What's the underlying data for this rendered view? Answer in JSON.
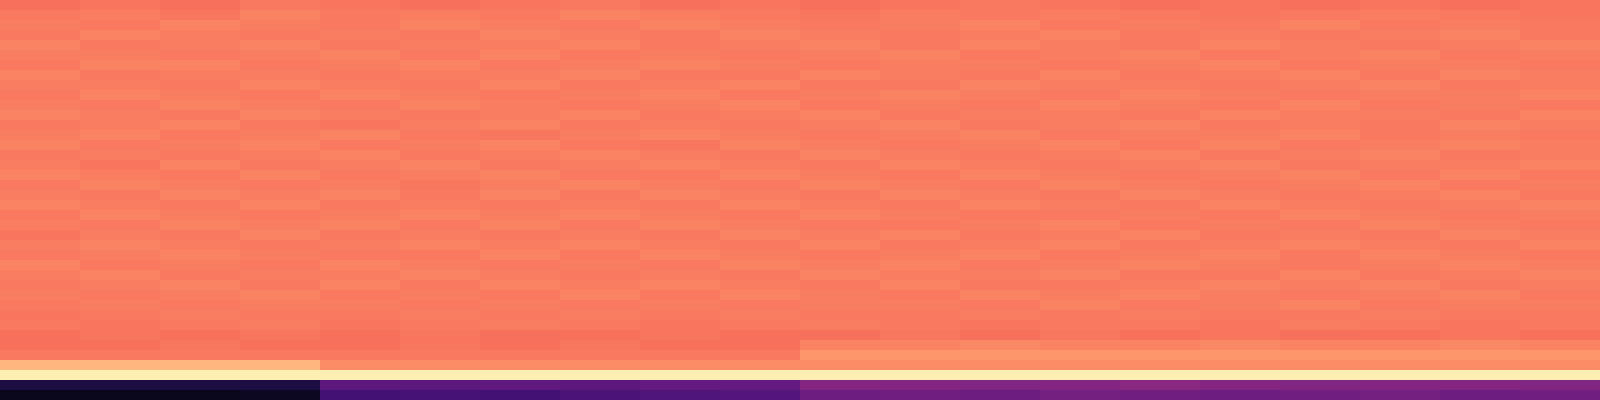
{
  "chart_data": {
    "type": "heatmap",
    "tick_labels": false,
    "color_range": [
      0,
      1
    ],
    "cells": [
      [
        0.7,
        0.71,
        0.7,
        0.72,
        0.71,
        0.7,
        0.71,
        0.72,
        0.7,
        0.71,
        0.7,
        0.71,
        0.72,
        0.71,
        0.7,
        0.71,
        0.7,
        0.71,
        0.7,
        0.71
      ],
      [
        0.72,
        0.73,
        0.71,
        0.74,
        0.72,
        0.73,
        0.72,
        0.74,
        0.73,
        0.72,
        0.71,
        0.73,
        0.72,
        0.73,
        0.72,
        0.71,
        0.72,
        0.73,
        0.72,
        0.71
      ],
      [
        0.73,
        0.72,
        0.74,
        0.73,
        0.72,
        0.74,
        0.73,
        0.72,
        0.74,
        0.73,
        0.72,
        0.73,
        0.74,
        0.72,
        0.73,
        0.72,
        0.74,
        0.72,
        0.73,
        0.72
      ],
      [
        0.72,
        0.74,
        0.73,
        0.72,
        0.73,
        0.72,
        0.74,
        0.73,
        0.72,
        0.74,
        0.73,
        0.72,
        0.73,
        0.74,
        0.72,
        0.73,
        0.72,
        0.73,
        0.74,
        0.72
      ],
      [
        0.74,
        0.72,
        0.73,
        0.74,
        0.72,
        0.73,
        0.73,
        0.74,
        0.72,
        0.73,
        0.74,
        0.72,
        0.74,
        0.73,
        0.72,
        0.74,
        0.73,
        0.72,
        0.73,
        0.74
      ],
      [
        0.73,
        0.73,
        0.72,
        0.73,
        0.74,
        0.72,
        0.74,
        0.72,
        0.73,
        0.72,
        0.73,
        0.74,
        0.72,
        0.73,
        0.74,
        0.72,
        0.73,
        0.74,
        0.72,
        0.73
      ],
      [
        0.72,
        0.74,
        0.74,
        0.72,
        0.73,
        0.74,
        0.72,
        0.73,
        0.74,
        0.73,
        0.72,
        0.73,
        0.73,
        0.72,
        0.73,
        0.74,
        0.72,
        0.73,
        0.73,
        0.72
      ],
      [
        0.74,
        0.72,
        0.73,
        0.73,
        0.72,
        0.73,
        0.73,
        0.74,
        0.72,
        0.72,
        0.74,
        0.73,
        0.72,
        0.74,
        0.72,
        0.73,
        0.74,
        0.72,
        0.74,
        0.73
      ],
      [
        0.73,
        0.73,
        0.72,
        0.74,
        0.73,
        0.72,
        0.74,
        0.72,
        0.73,
        0.74,
        0.72,
        0.72,
        0.74,
        0.73,
        0.73,
        0.72,
        0.73,
        0.74,
        0.72,
        0.73
      ],
      [
        0.72,
        0.74,
        0.73,
        0.72,
        0.74,
        0.73,
        0.72,
        0.73,
        0.74,
        0.72,
        0.73,
        0.74,
        0.73,
        0.72,
        0.74,
        0.73,
        0.72,
        0.73,
        0.73,
        0.74
      ],
      [
        0.73,
        0.72,
        0.74,
        0.73,
        0.72,
        0.74,
        0.73,
        0.72,
        0.73,
        0.74,
        0.72,
        0.73,
        0.72,
        0.74,
        0.73,
        0.72,
        0.74,
        0.72,
        0.73,
        0.72
      ],
      [
        0.74,
        0.73,
        0.72,
        0.74,
        0.73,
        0.72,
        0.73,
        0.74,
        0.72,
        0.73,
        0.74,
        0.72,
        0.73,
        0.73,
        0.72,
        0.74,
        0.73,
        0.73,
        0.72,
        0.74
      ],
      [
        0.72,
        0.73,
        0.74,
        0.72,
        0.71,
        0.73,
        0.74,
        0.72,
        0.73,
        0.72,
        0.73,
        0.74,
        0.72,
        0.73,
        0.74,
        0.72,
        0.73,
        0.72,
        0.74,
        0.73
      ],
      [
        0.73,
        0.74,
        0.72,
        0.73,
        0.74,
        0.72,
        0.71,
        0.73,
        0.74,
        0.73,
        0.72,
        0.73,
        0.74,
        0.72,
        0.73,
        0.73,
        0.74,
        0.72,
        0.73,
        0.72
      ],
      [
        0.74,
        0.72,
        0.73,
        0.74,
        0.72,
        0.73,
        0.74,
        0.72,
        0.71,
        0.74,
        0.73,
        0.72,
        0.73,
        0.74,
        0.72,
        0.74,
        0.72,
        0.73,
        0.74,
        0.73
      ],
      [
        0.72,
        0.73,
        0.72,
        0.73,
        0.74,
        0.72,
        0.73,
        0.74,
        0.73,
        0.72,
        0.74,
        0.73,
        0.72,
        0.73,
        0.74,
        0.72,
        0.73,
        0.74,
        0.72,
        0.73
      ],
      [
        0.73,
        0.71,
        0.74,
        0.72,
        0.73,
        0.74,
        0.72,
        0.73,
        0.74,
        0.73,
        0.72,
        0.74,
        0.73,
        0.72,
        0.73,
        0.74,
        0.72,
        0.73,
        0.73,
        0.74
      ],
      [
        0.74,
        0.73,
        0.72,
        0.74,
        0.72,
        0.73,
        0.74,
        0.72,
        0.72,
        0.74,
        0.73,
        0.72,
        0.74,
        0.73,
        0.72,
        0.73,
        0.74,
        0.72,
        0.74,
        0.72
      ],
      [
        0.72,
        0.74,
        0.73,
        0.72,
        0.73,
        0.71,
        0.73,
        0.74,
        0.73,
        0.72,
        0.74,
        0.73,
        0.72,
        0.74,
        0.73,
        0.72,
        0.73,
        0.74,
        0.72,
        0.73
      ],
      [
        0.73,
        0.72,
        0.74,
        0.73,
        0.74,
        0.72,
        0.74,
        0.72,
        0.74,
        0.73,
        0.72,
        0.74,
        0.73,
        0.72,
        0.74,
        0.73,
        0.72,
        0.73,
        0.74,
        0.72
      ],
      [
        0.74,
        0.73,
        0.72,
        0.74,
        0.72,
        0.73,
        0.72,
        0.73,
        0.72,
        0.74,
        0.73,
        0.72,
        0.74,
        0.73,
        0.72,
        0.74,
        0.73,
        0.72,
        0.73,
        0.74
      ],
      [
        0.72,
        0.74,
        0.73,
        0.72,
        0.73,
        0.74,
        0.73,
        0.74,
        0.73,
        0.72,
        0.74,
        0.73,
        0.72,
        0.72,
        0.73,
        0.72,
        0.74,
        0.73,
        0.72,
        0.73
      ],
      [
        0.73,
        0.72,
        0.74,
        0.73,
        0.74,
        0.72,
        0.74,
        0.72,
        0.74,
        0.73,
        0.72,
        0.72,
        0.73,
        0.74,
        0.72,
        0.73,
        0.72,
        0.74,
        0.73,
        0.72
      ],
      [
        0.71,
        0.73,
        0.72,
        0.74,
        0.72,
        0.73,
        0.72,
        0.73,
        0.72,
        0.74,
        0.73,
        0.74,
        0.72,
        0.73,
        0.74,
        0.72,
        0.73,
        0.72,
        0.74,
        0.73
      ],
      [
        0.73,
        0.74,
        0.73,
        0.72,
        0.73,
        0.74,
        0.73,
        0.74,
        0.73,
        0.72,
        0.74,
        0.72,
        0.73,
        0.74,
        0.72,
        0.73,
        0.74,
        0.73,
        0.72,
        0.74
      ],
      [
        0.72,
        0.73,
        0.74,
        0.73,
        0.72,
        0.72,
        0.74,
        0.72,
        0.74,
        0.73,
        0.72,
        0.73,
        0.74,
        0.72,
        0.73,
        0.74,
        0.72,
        0.74,
        0.73,
        0.72
      ],
      [
        0.74,
        0.72,
        0.73,
        0.72,
        0.74,
        0.73,
        0.72,
        0.73,
        0.72,
        0.74,
        0.73,
        0.74,
        0.72,
        0.73,
        0.74,
        0.73,
        0.72,
        0.73,
        0.74,
        0.73
      ],
      [
        0.73,
        0.74,
        0.72,
        0.73,
        0.73,
        0.74,
        0.73,
        0.72,
        0.73,
        0.72,
        0.74,
        0.73,
        0.73,
        0.74,
        0.72,
        0.72,
        0.74,
        0.72,
        0.73,
        0.74
      ],
      [
        0.72,
        0.73,
        0.74,
        0.72,
        0.74,
        0.72,
        0.74,
        0.73,
        0.74,
        0.73,
        0.72,
        0.74,
        0.72,
        0.72,
        0.73,
        0.74,
        0.73,
        0.74,
        0.72,
        0.73
      ],
      [
        0.73,
        0.72,
        0.73,
        0.74,
        0.72,
        0.73,
        0.72,
        0.74,
        0.72,
        0.74,
        0.73,
        0.72,
        0.74,
        0.73,
        0.74,
        0.73,
        0.72,
        0.73,
        0.74,
        0.72
      ],
      [
        0.72,
        0.73,
        0.72,
        0.73,
        0.73,
        0.72,
        0.73,
        0.72,
        0.73,
        0.72,
        0.73,
        0.73,
        0.72,
        0.74,
        0.72,
        0.73,
        0.74,
        0.72,
        0.73,
        0.73
      ],
      [
        0.71,
        0.72,
        0.73,
        0.72,
        0.72,
        0.73,
        0.72,
        0.73,
        0.72,
        0.73,
        0.72,
        0.72,
        0.73,
        0.72,
        0.73,
        0.72,
        0.72,
        0.73,
        0.72,
        0.72
      ],
      [
        0.72,
        0.71,
        0.72,
        0.73,
        0.71,
        0.72,
        0.73,
        0.72,
        0.71,
        0.72,
        0.73,
        0.72,
        0.71,
        0.72,
        0.72,
        0.71,
        0.73,
        0.72,
        0.71,
        0.72
      ],
      [
        0.7,
        0.71,
        0.7,
        0.71,
        0.7,
        0.71,
        0.7,
        0.7,
        0.71,
        0.7,
        0.7,
        0.71,
        0.7,
        0.71,
        0.7,
        0.71,
        0.7,
        0.7,
        0.71,
        0.7
      ],
      [
        0.7,
        0.7,
        0.71,
        0.7,
        0.7,
        0.71,
        0.7,
        0.71,
        0.7,
        0.7,
        0.74,
        0.74,
        0.75,
        0.74,
        0.74,
        0.75,
        0.74,
        0.74,
        0.75,
        0.74
      ],
      [
        0.72,
        0.72,
        0.72,
        0.72,
        0.72,
        0.72,
        0.72,
        0.72,
        0.72,
        0.72,
        0.78,
        0.78,
        0.78,
        0.78,
        0.78,
        0.78,
        0.78,
        0.78,
        0.78,
        0.78
      ],
      [
        0.85,
        0.85,
        0.85,
        0.85,
        0.76,
        0.76,
        0.76,
        0.76,
        0.76,
        0.76,
        0.76,
        0.76,
        0.76,
        0.76,
        0.76,
        0.76,
        0.76,
        0.76,
        0.76,
        0.76
      ],
      [
        0.97,
        0.97,
        0.97,
        0.97,
        0.97,
        0.97,
        0.97,
        0.97,
        0.97,
        0.97,
        0.97,
        0.97,
        0.97,
        0.97,
        0.97,
        0.97,
        0.97,
        0.97,
        0.97,
        0.97
      ],
      [
        0.12,
        0.12,
        0.12,
        0.12,
        0.28,
        0.28,
        0.29,
        0.28,
        0.3,
        0.3,
        0.38,
        0.38,
        0.37,
        0.38,
        0.39,
        0.38,
        0.37,
        0.38,
        0.38,
        0.37
      ],
      [
        0.05,
        0.05,
        0.05,
        0.06,
        0.22,
        0.23,
        0.22,
        0.24,
        0.25,
        0.26,
        0.32,
        0.33,
        0.32,
        0.34,
        0.33,
        0.32,
        0.33,
        0.34,
        0.32,
        0.33
      ]
    ]
  }
}
